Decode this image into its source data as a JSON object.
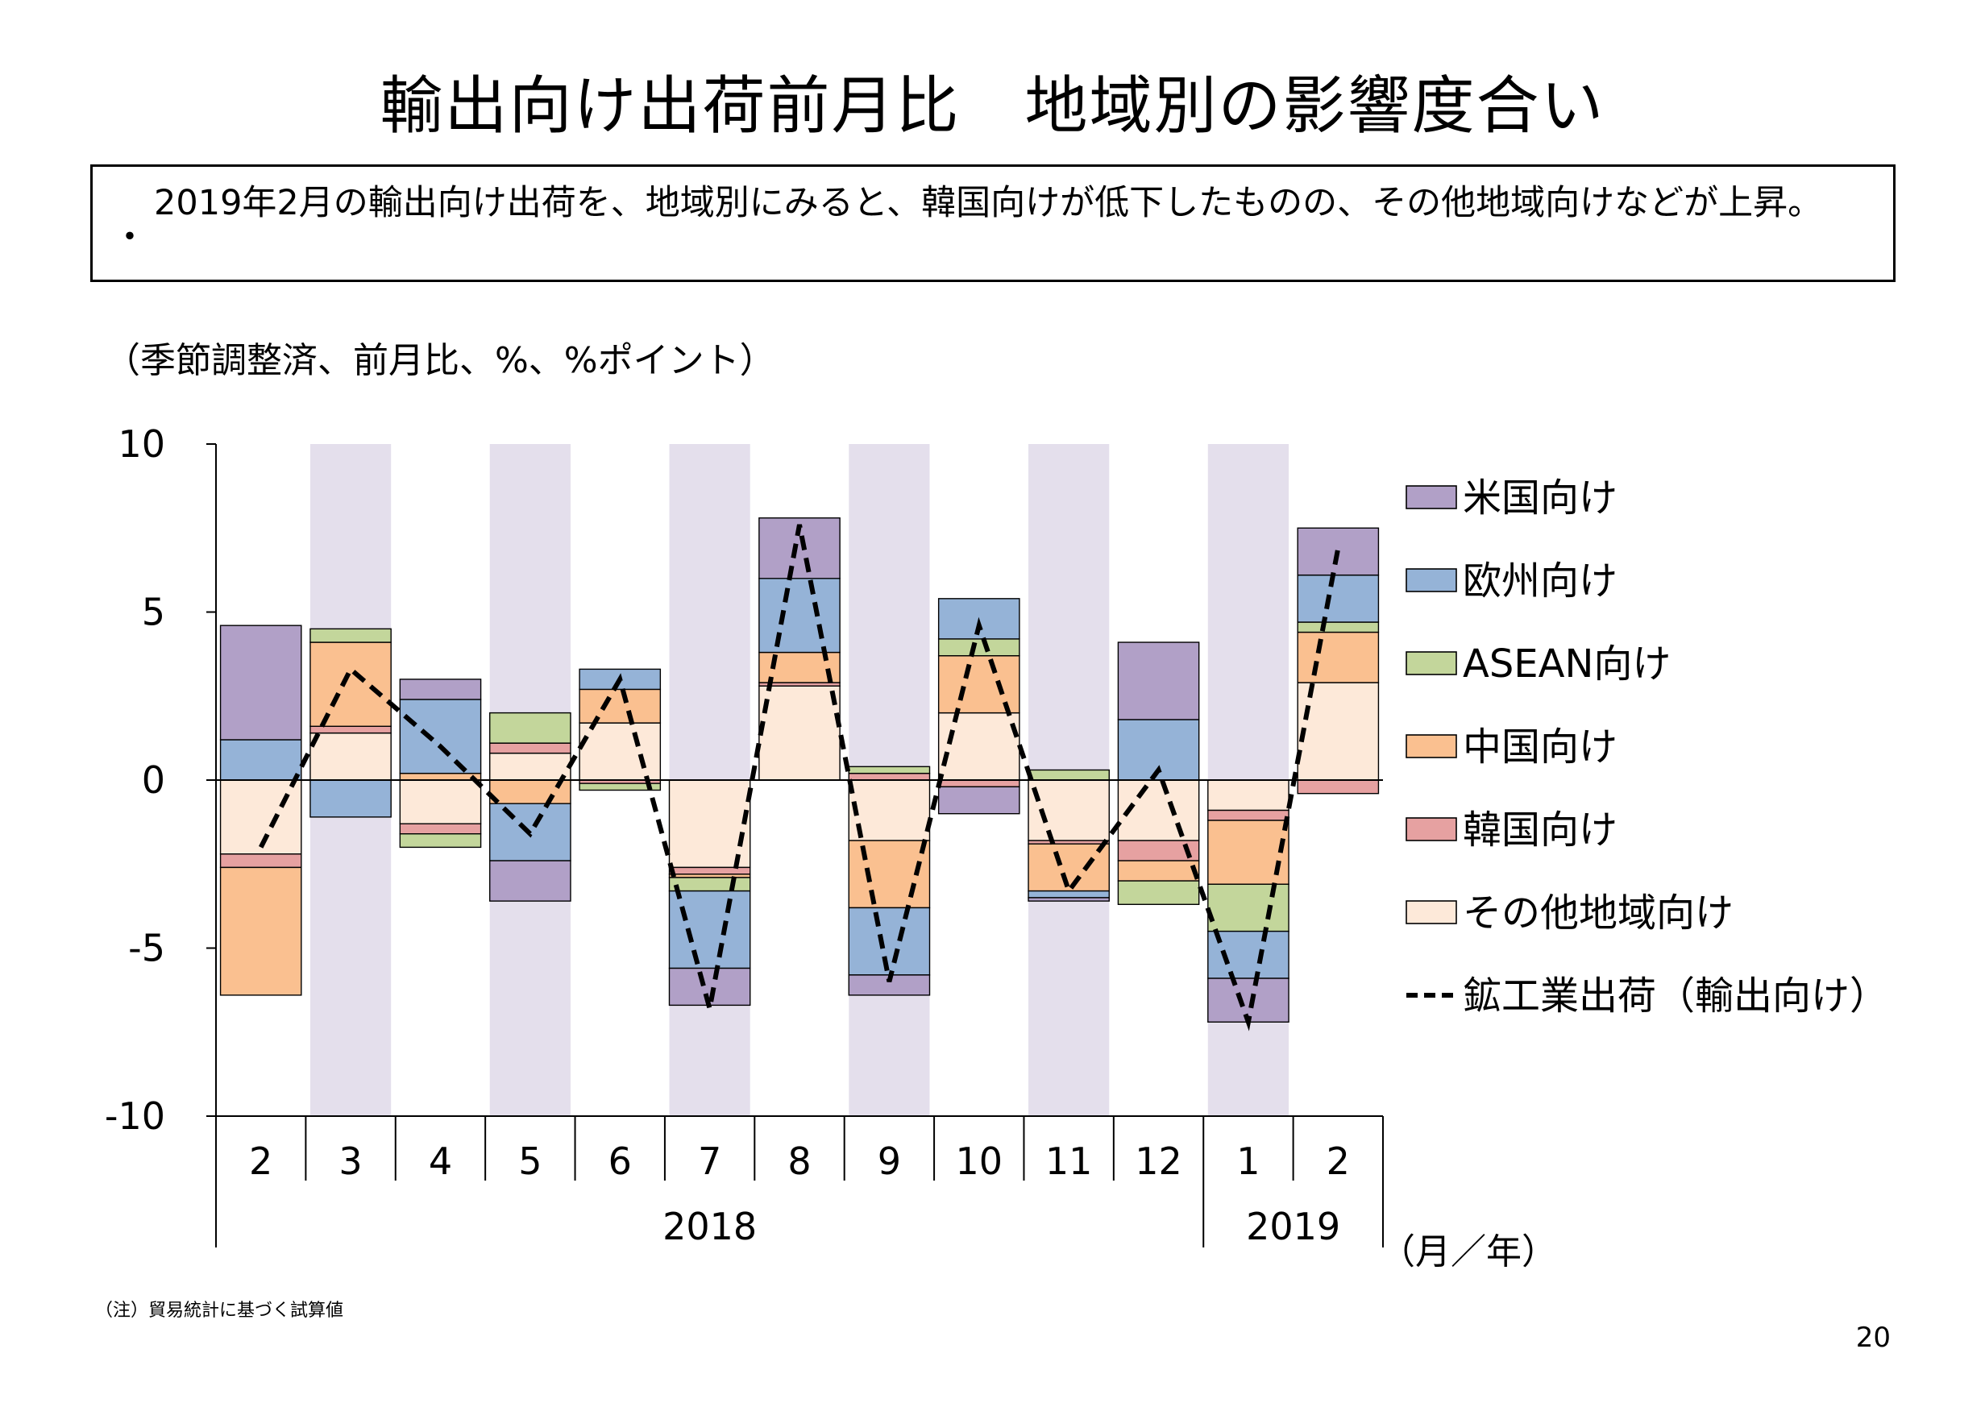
{
  "title": "輸出向け出荷前月比　地域別の影響度合い",
  "summary": {
    "bullet": "・",
    "text": "2019年2月の輸出向け出荷を、地域別にみると、韓国向けが低下したものの、その他地域向けなどが上昇。"
  },
  "unit_label": "（季節調整済、前月比、%、%ポイント）",
  "axis_unit": "（月／年）",
  "note": "（注）貿易統計に基づく試算値",
  "page_number": "20",
  "colors": {
    "us": "#b1a0c7",
    "eu": "#95b3d7",
    "asean": "#c3d69b",
    "china": "#fac090",
    "korea": "#e6a1a1",
    "other": "#fde9d9",
    "shade": "#e4dfec"
  },
  "chart_data": {
    "type": "bar",
    "stacked": true,
    "categories": [
      "2",
      "3",
      "4",
      "5",
      "6",
      "7",
      "8",
      "9",
      "10",
      "11",
      "12",
      "1",
      "2"
    ],
    "year_groups": [
      {
        "label": "2018",
        "start": 0,
        "end": 10
      },
      {
        "label": "2019",
        "start": 11,
        "end": 12
      }
    ],
    "shaded_categories": [
      1,
      3,
      5,
      7,
      9,
      11
    ],
    "ylim": [
      -10,
      10
    ],
    "yticks": [
      10,
      5,
      0,
      -5,
      -10
    ],
    "series": [
      {
        "name": "その他地域向け",
        "key": "other",
        "values": [
          -2.2,
          1.4,
          -1.3,
          0.8,
          1.7,
          -2.6,
          2.8,
          -1.8,
          2.0,
          -1.8,
          -1.8,
          -0.9,
          2.9
        ]
      },
      {
        "name": "韓国向け",
        "key": "korea",
        "values": [
          -0.4,
          0.2,
          -0.3,
          0.3,
          -0.1,
          -0.2,
          0.1,
          0.2,
          -0.2,
          -0.1,
          -0.6,
          -0.3,
          -0.4
        ]
      },
      {
        "name": "中国向け",
        "key": "china",
        "values": [
          -3.8,
          2.5,
          0.2,
          -0.7,
          1.0,
          -0.1,
          0.9,
          -2.0,
          1.7,
          -1.4,
          -0.6,
          -1.9,
          1.5
        ]
      },
      {
        "name": "ASEAN向け",
        "key": "asean",
        "values": [
          0.0,
          0.4,
          -0.4,
          0.9,
          -0.2,
          -0.4,
          0.0,
          0.2,
          0.5,
          0.3,
          -0.7,
          -1.4,
          0.3
        ]
      },
      {
        "name": "欧州向け",
        "key": "eu",
        "values": [
          1.2,
          -1.1,
          2.2,
          -1.7,
          0.6,
          -2.3,
          2.2,
          -2.0,
          1.2,
          -0.2,
          1.8,
          -1.4,
          1.4
        ]
      },
      {
        "name": "米国向け",
        "key": "us",
        "values": [
          3.4,
          0.0,
          0.6,
          -1.2,
          0.0,
          -1.1,
          1.8,
          -0.6,
          -0.8,
          -0.1,
          2.3,
          -1.3,
          1.4
        ]
      }
    ],
    "line": {
      "name": "鉱工業出荷（輸出向け）",
      "values": [
        -2.0,
        3.3,
        1.0,
        -1.6,
        3.0,
        -6.8,
        7.6,
        -6.0,
        4.6,
        -3.3,
        0.3,
        -7.2,
        6.9
      ]
    },
    "legend_order": [
      "us",
      "eu",
      "asean",
      "china",
      "korea",
      "other",
      "line"
    ],
    "legend_position": "right"
  }
}
